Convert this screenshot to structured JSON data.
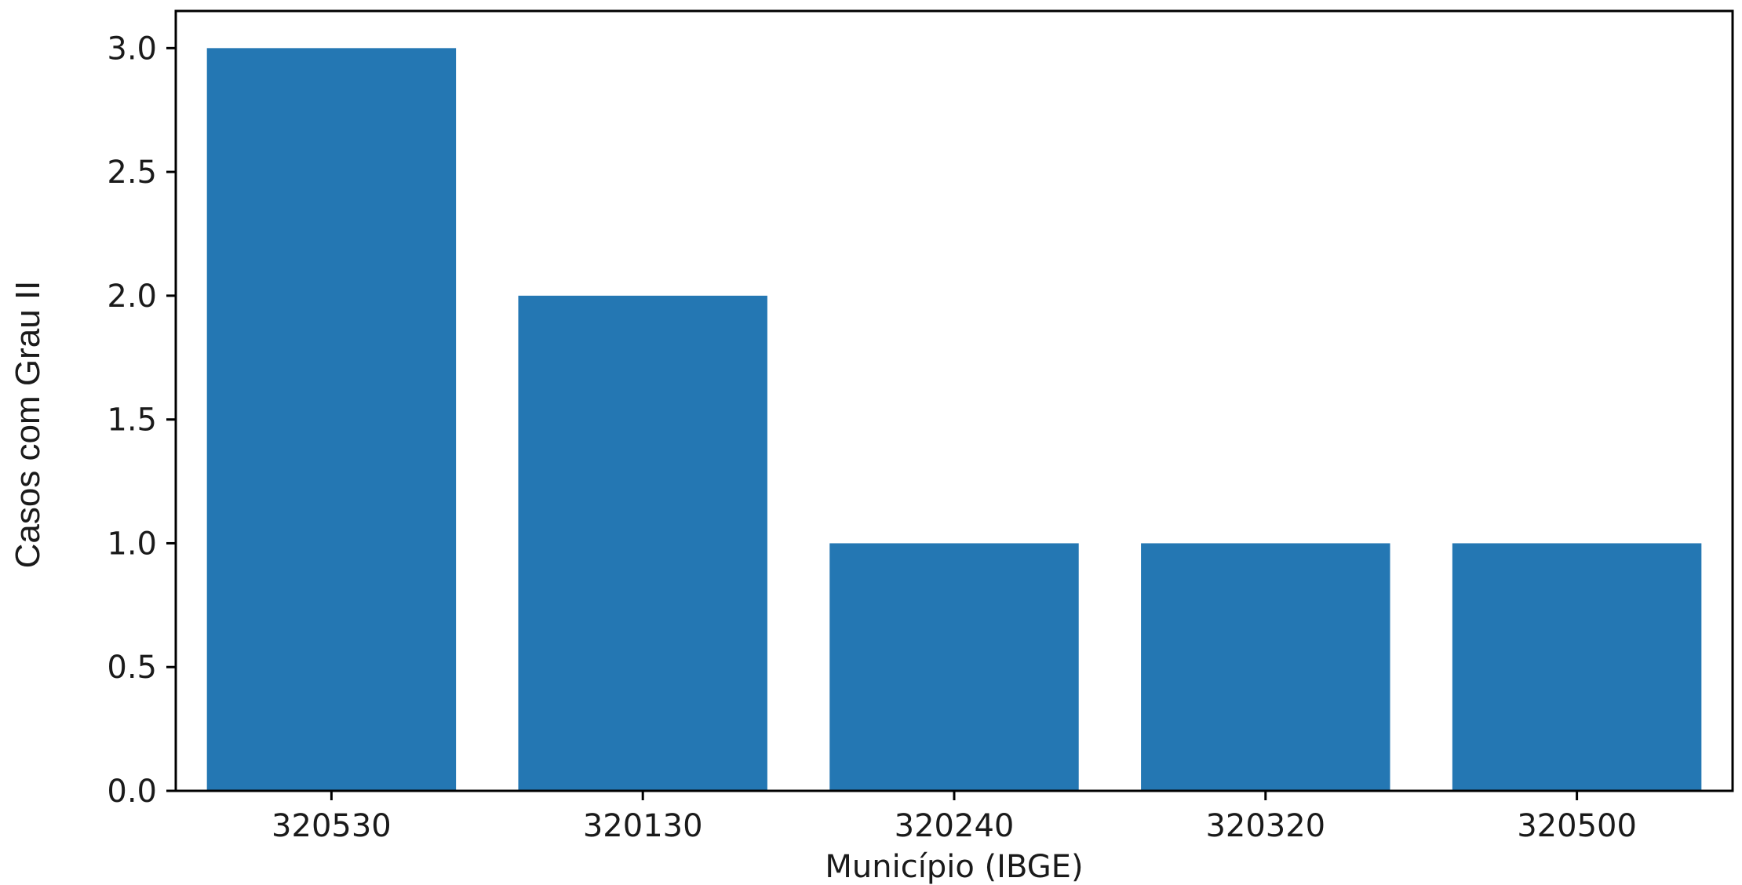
{
  "chart_data": {
    "type": "bar",
    "title": "",
    "xlabel": "Município (IBGE)",
    "ylabel": "Casos com Grau II",
    "categories": [
      "320530",
      "320130",
      "320240",
      "320320",
      "320500"
    ],
    "values": [
      3,
      2,
      1,
      1,
      1
    ],
    "ylim": [
      0,
      3.15
    ],
    "yticks": [
      "0.0",
      "0.5",
      "1.0",
      "1.5",
      "2.0",
      "2.5",
      "3.0"
    ],
    "ytick_values": [
      0,
      0.5,
      1.0,
      1.5,
      2.0,
      2.5,
      3.0
    ],
    "grid": false,
    "bar_color": "#2477b3",
    "axis_color": "#000000"
  }
}
